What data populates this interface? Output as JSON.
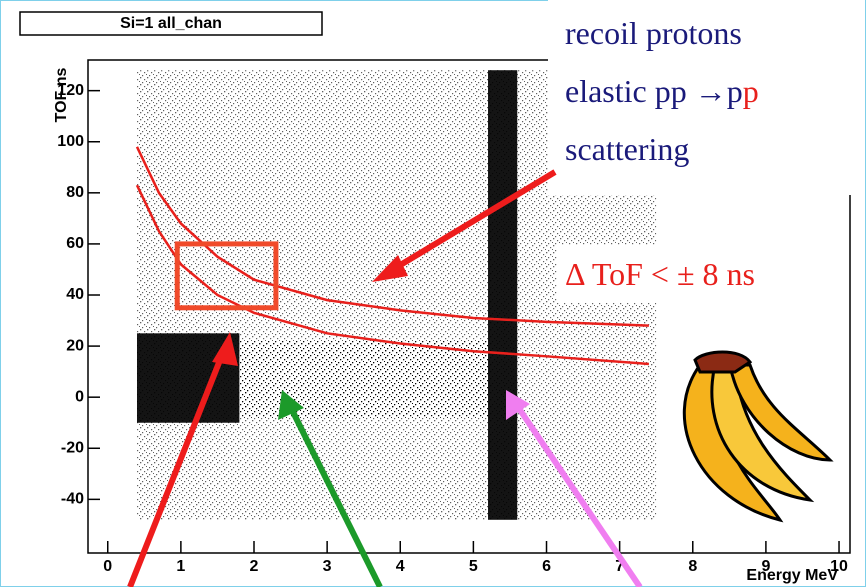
{
  "chart_data": {
    "type": "scatter",
    "title": "Si=1 all_chan",
    "x_label": "Energy MeV",
    "y_label": "TOF ns",
    "xlim": [
      -0.27,
      10.15
    ],
    "ylim": [
      -61,
      132
    ],
    "xticks": [
      0,
      1,
      2,
      3,
      4,
      5,
      6,
      7,
      8,
      9,
      10
    ],
    "yticks": [
      -40,
      -20,
      0,
      20,
      40,
      60,
      80,
      100,
      120
    ],
    "regions": [
      {
        "x": [
          0.4,
          7.5
        ],
        "y": [
          -48,
          128
        ],
        "density": 0.25
      },
      {
        "x": [
          1.8,
          5.2
        ],
        "y": [
          -8,
          22
        ],
        "density": 0.6
      },
      {
        "x": [
          0.4,
          1.8
        ],
        "y": [
          -10,
          25
        ],
        "density": 0.95
      },
      {
        "x": [
          5.2,
          5.6
        ],
        "y": [
          -48,
          128
        ],
        "density": 0.95
      }
    ],
    "series": [
      {
        "color": "#e8201c",
        "x": [
          0.4,
          0.7,
          1,
          1.5,
          2,
          3,
          4,
          5,
          6,
          7.4
        ],
        "values": [
          98,
          80,
          68,
          55,
          46,
          38,
          34,
          31,
          29.5,
          28
        ]
      },
      {
        "color": "#e8201c",
        "x": [
          0.4,
          0.7,
          1,
          1.5,
          2,
          3,
          4,
          5,
          6,
          7.4
        ],
        "values": [
          83,
          65,
          52,
          40,
          33,
          25,
          21,
          18,
          16,
          13
        ]
      }
    ],
    "box": {
      "x": [
        0.95,
        2.3
      ],
      "y": [
        35,
        60
      ],
      "color": "#f04a2a"
    },
    "annotations": {
      "line1": "recoil protons",
      "line2": [
        "elastic pp →p",
        "p"
      ],
      "line3": "scattering",
      "cut": "Δ ToF < ± 8 ns"
    }
  }
}
